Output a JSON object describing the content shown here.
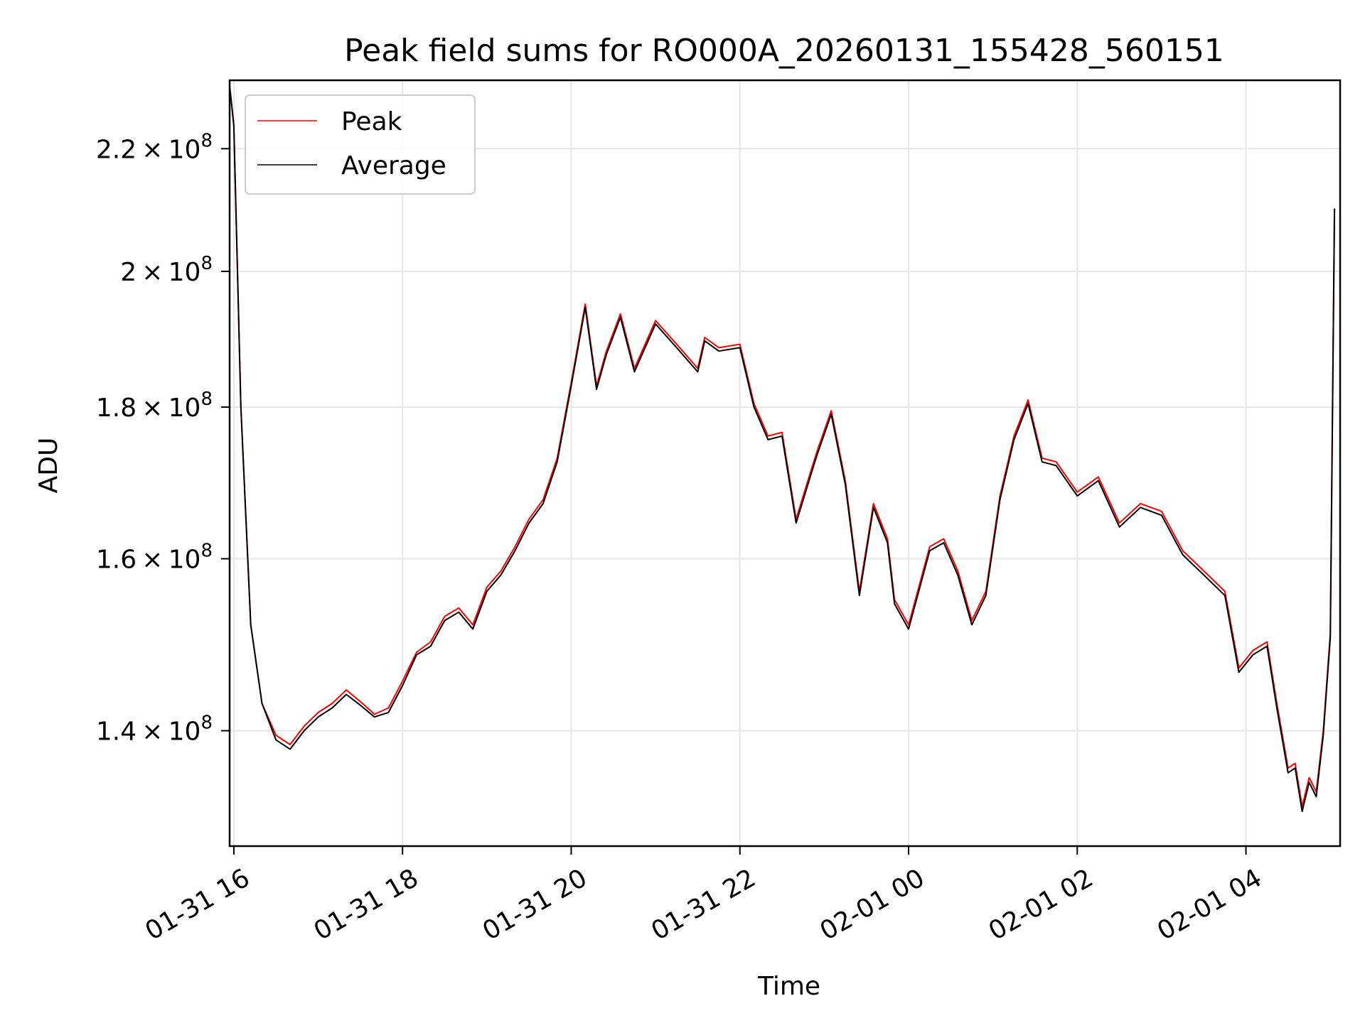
{
  "chart_data": {
    "type": "line",
    "title": "Peak field sums for RO000A_20260131_155428_560151",
    "xlabel": "Time",
    "ylabel": "ADU",
    "y_scale": "log",
    "xlim": [
      "2026-01-31 15:57",
      "2026-02-01 05:07"
    ],
    "ylim": [
      128000000,
      232000000
    ],
    "x_ticks": [
      "2026-01-31 16:00",
      "2026-01-31 18:00",
      "2026-01-31 20:00",
      "2026-01-31 22:00",
      "2026-02-01 00:00",
      "2026-02-01 02:00",
      "2026-02-01 04:00"
    ],
    "x_tick_labels": [
      "01-31 16",
      "01-31 18",
      "01-31 20",
      "01-31 22",
      "02-01 00",
      "02-01 02",
      "02-01 04"
    ],
    "y_ticks": [
      140000000,
      160000000,
      180000000,
      200000000,
      220000000
    ],
    "y_tick_labels": [
      {
        "mantissa": "1.4",
        "exponent": "8"
      },
      {
        "mantissa": "1.6",
        "exponent": "8"
      },
      {
        "mantissa": "1.8",
        "exponent": "8"
      },
      {
        "mantissa": "2",
        "exponent": "8"
      },
      {
        "mantissa": "2.2",
        "exponent": "8"
      }
    ],
    "grid": true,
    "legend_position": "top-left",
    "series": [
      {
        "name": "Peak",
        "color": "#ff0000",
        "x": [
          "2026-01-31 15:57",
          "2026-01-31 16:00",
          "2026-01-31 16:05",
          "2026-01-31 16:12",
          "2026-01-31 16:20",
          "2026-01-31 16:30",
          "2026-01-31 16:40",
          "2026-01-31 16:50",
          "2026-01-31 17:00",
          "2026-01-31 17:10",
          "2026-01-31 17:20",
          "2026-01-31 17:30",
          "2026-01-31 17:40",
          "2026-01-31 17:50",
          "2026-01-31 18:00",
          "2026-01-31 18:10",
          "2026-01-31 18:20",
          "2026-01-31 18:30",
          "2026-01-31 18:40",
          "2026-01-31 18:50",
          "2026-01-31 19:00",
          "2026-01-31 19:10",
          "2026-01-31 19:20",
          "2026-01-31 19:30",
          "2026-01-31 19:40",
          "2026-01-31 19:50",
          "2026-01-31 20:00",
          "2026-01-31 20:10",
          "2026-01-31 20:18",
          "2026-01-31 20:25",
          "2026-01-31 20:35",
          "2026-01-31 20:45",
          "2026-01-31 21:00",
          "2026-01-31 21:15",
          "2026-01-31 21:30",
          "2026-01-31 21:35",
          "2026-01-31 21:45",
          "2026-01-31 22:00",
          "2026-01-31 22:10",
          "2026-01-31 22:20",
          "2026-01-31 22:30",
          "2026-01-31 22:40",
          "2026-01-31 22:50",
          "2026-01-31 22:55",
          "2026-01-31 23:05",
          "2026-01-31 23:15",
          "2026-01-31 23:25",
          "2026-01-31 23:35",
          "2026-01-31 23:45",
          "2026-01-31 23:50",
          "2026-02-01 00:00",
          "2026-02-01 00:15",
          "2026-02-01 00:25",
          "2026-02-01 00:35",
          "2026-02-01 00:45",
          "2026-02-01 00:55",
          "2026-02-01 01:05",
          "2026-02-01 01:15",
          "2026-02-01 01:25",
          "2026-02-01 01:35",
          "2026-02-01 01:45",
          "2026-02-01 02:00",
          "2026-02-01 02:15",
          "2026-02-01 02:30",
          "2026-02-01 02:45",
          "2026-02-01 03:00",
          "2026-02-01 03:15",
          "2026-02-01 03:30",
          "2026-02-01 03:45",
          "2026-02-01 03:55",
          "2026-02-01 04:05",
          "2026-02-01 04:15",
          "2026-02-01 04:22",
          "2026-02-01 04:30",
          "2026-02-01 04:35",
          "2026-02-01 04:40",
          "2026-02-01 04:45",
          "2026-02-01 04:50",
          "2026-02-01 04:55",
          "2026-02-01 05:00",
          "2026-02-01 05:03"
        ],
        "y": [
          231000000,
          224000000,
          180000000,
          152000000,
          143000000,
          139500000,
          138500000,
          140500000,
          142000000,
          143000000,
          144500000,
          143200000,
          141800000,
          142500000,
          145500000,
          148800000,
          150000000,
          153000000,
          154000000,
          152000000,
          156500000,
          158500000,
          161500000,
          165000000,
          167500000,
          173000000,
          183500000,
          195000000,
          183000000,
          188000000,
          193500000,
          185500000,
          192500000,
          189000000,
          185500000,
          190000000,
          188500000,
          189000000,
          180500000,
          176000000,
          176500000,
          165000000,
          171000000,
          174000000,
          179500000,
          170000000,
          156000000,
          167000000,
          162500000,
          155000000,
          152000000,
          161500000,
          162500000,
          158500000,
          152500000,
          156000000,
          168000000,
          176000000,
          181000000,
          173000000,
          172500000,
          168500000,
          170500000,
          164500000,
          167000000,
          166000000,
          161000000,
          158500000,
          156000000,
          147000000,
          149000000,
          150000000,
          143000000,
          136000000,
          136500000,
          132000000,
          135000000,
          133500000,
          140000000,
          151000000,
          210000000
        ]
      },
      {
        "name": "Average",
        "color": "#000000",
        "x": [
          "2026-01-31 15:57",
          "2026-01-31 16:00",
          "2026-01-31 16:05",
          "2026-01-31 16:12",
          "2026-01-31 16:20",
          "2026-01-31 16:30",
          "2026-01-31 16:40",
          "2026-01-31 16:50",
          "2026-01-31 17:00",
          "2026-01-31 17:10",
          "2026-01-31 17:20",
          "2026-01-31 17:30",
          "2026-01-31 17:40",
          "2026-01-31 17:50",
          "2026-01-31 18:00",
          "2026-01-31 18:10",
          "2026-01-31 18:20",
          "2026-01-31 18:30",
          "2026-01-31 18:40",
          "2026-01-31 18:50",
          "2026-01-31 19:00",
          "2026-01-31 19:10",
          "2026-01-31 19:20",
          "2026-01-31 19:30",
          "2026-01-31 19:40",
          "2026-01-31 19:50",
          "2026-01-31 20:00",
          "2026-01-31 20:10",
          "2026-01-31 20:18",
          "2026-01-31 20:25",
          "2026-01-31 20:35",
          "2026-01-31 20:45",
          "2026-01-31 21:00",
          "2026-01-31 21:15",
          "2026-01-31 21:30",
          "2026-01-31 21:35",
          "2026-01-31 21:45",
          "2026-01-31 22:00",
          "2026-01-31 22:10",
          "2026-01-31 22:20",
          "2026-01-31 22:30",
          "2026-01-31 22:40",
          "2026-01-31 22:50",
          "2026-01-31 22:55",
          "2026-01-31 23:05",
          "2026-01-31 23:15",
          "2026-01-31 23:25",
          "2026-01-31 23:35",
          "2026-01-31 23:45",
          "2026-01-31 23:50",
          "2026-02-01 00:00",
          "2026-02-01 00:15",
          "2026-02-01 00:25",
          "2026-02-01 00:35",
          "2026-02-01 00:45",
          "2026-02-01 00:55",
          "2026-02-01 01:05",
          "2026-02-01 01:15",
          "2026-02-01 01:25",
          "2026-02-01 01:35",
          "2026-02-01 01:45",
          "2026-02-01 02:00",
          "2026-02-01 02:15",
          "2026-02-01 02:30",
          "2026-02-01 02:45",
          "2026-02-01 03:00",
          "2026-02-01 03:15",
          "2026-02-01 03:30",
          "2026-02-01 03:45",
          "2026-02-01 03:55",
          "2026-02-01 04:05",
          "2026-02-01 04:15",
          "2026-02-01 04:22",
          "2026-02-01 04:30",
          "2026-02-01 04:35",
          "2026-02-01 04:40",
          "2026-02-01 04:45",
          "2026-02-01 04:50",
          "2026-02-01 04:55",
          "2026-02-01 05:00",
          "2026-02-01 05:03"
        ],
        "y": [
          231000000,
          224000000,
          180000000,
          152000000,
          143000000,
          139000000,
          138000000,
          140000000,
          141500000,
          142500000,
          144000000,
          142800000,
          141500000,
          142000000,
          145000000,
          148500000,
          149500000,
          152500000,
          153500000,
          151500000,
          156000000,
          158000000,
          161000000,
          164500000,
          167000000,
          172500000,
          183000000,
          194500000,
          182500000,
          187500000,
          193000000,
          185000000,
          192000000,
          188500000,
          185000000,
          189500000,
          188000000,
          188500000,
          180000000,
          175500000,
          176000000,
          164500000,
          170500000,
          173500000,
          179000000,
          169500000,
          155500000,
          166500000,
          162000000,
          154500000,
          151500000,
          161000000,
          162000000,
          158000000,
          152000000,
          155500000,
          167500000,
          175500000,
          180500000,
          172500000,
          172000000,
          168000000,
          170000000,
          164000000,
          166500000,
          165500000,
          160500000,
          158000000,
          155500000,
          146500000,
          148500000,
          149500000,
          142500000,
          135500000,
          136000000,
          131500000,
          134500000,
          133000000,
          139500000,
          150500000,
          210000000
        ]
      }
    ]
  }
}
